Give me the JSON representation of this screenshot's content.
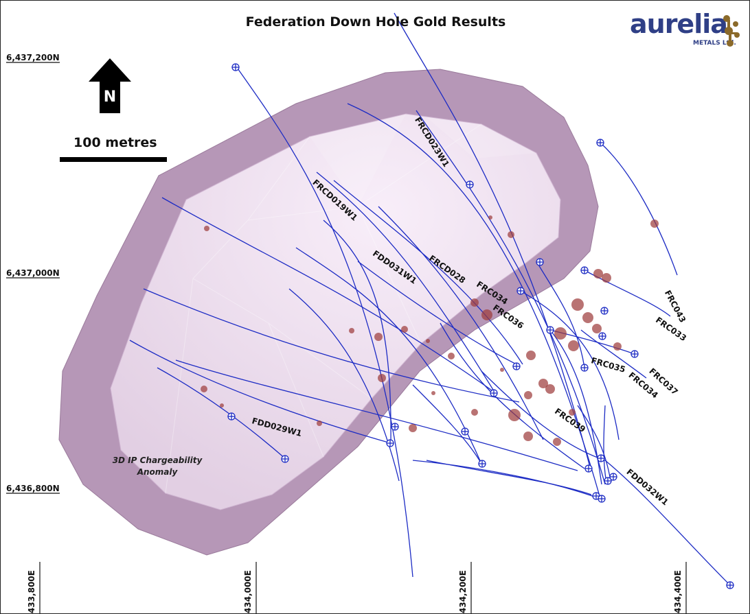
{
  "map": {
    "title": "Federation Down Hole Gold Results",
    "logo": {
      "brand": "aurelia",
      "subtitle": "METALS Ltd."
    },
    "north_arrow_label": "N",
    "scale_label": "100 metres",
    "anomaly_label": "3D IP Chargeability Anomaly",
    "northings": [
      "6,437,200N",
      "6,437,000N",
      "6,436,800N"
    ],
    "eastings": [
      "433,800E",
      "434,000E",
      "434,200E",
      "434,400E"
    ],
    "drill_holes": [
      "FRCD023W1",
      "FRCD019W1",
      "FDD031W1",
      "FRCD028",
      "FRC034",
      "FRC036",
      "FRC043",
      "FRC033",
      "FRC037",
      "FRC035",
      "FRC034",
      "FRC039",
      "FDD029W1",
      "FDD032W1"
    ],
    "colors": {
      "anomaly_outer": "#b495b5",
      "anomaly_inner": "#ecdcee",
      "drill_trace": "#1c2bc4",
      "gold_intercept": "#9e3d3d",
      "brand": "#2f3f86",
      "brand_mark": "#8b6a2a"
    }
  }
}
